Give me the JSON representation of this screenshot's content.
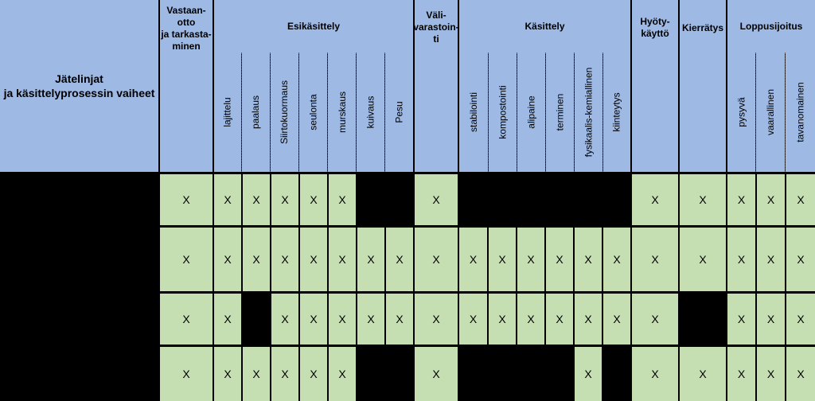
{
  "header": {
    "corner": "Jätelinjat\nja käsittelyprosessin vaiheet",
    "groups": {
      "vastaanotto": "Vastaan-\notto\nja tarkasta-\nminen",
      "esikasittely": "Esikäsittely",
      "valivarastointi": "Väli-\nvarastoin-\nti",
      "kasittely": "Käsittely",
      "hyotykaytto": "Hyöty-\nkäyttö",
      "kierratys": "Kierrätys",
      "loppusijoitus": "Loppusijoitus"
    },
    "sub": {
      "esikasittely": [
        "lajittelu",
        "paalaus",
        "Siirtokuormaus",
        "seulonta",
        "murskaus",
        "kuivaus",
        "Pesu"
      ],
      "kasittely": [
        "stabilointi",
        "kompostointi",
        "alipaine",
        "terminen",
        "fysikaalis-kemiallinen",
        "kiinteytys"
      ],
      "loppusijoitus": [
        "pysyvä",
        "vaarallinen",
        "tavanomainen"
      ]
    }
  },
  "mark": "X",
  "colors": {
    "header_bg": "#9eb9e3",
    "cell_bg": "#c5dfb3",
    "empty_bg": "#000000"
  },
  "rows": [
    {
      "lajittelu": "X",
      "paalaus": "X",
      "siirtokuormaus": "X",
      "seulonta": "X",
      "murskaus": "X",
      "hyotykaytto": "X",
      "kierratys": "X",
      "pysyva": "X",
      "vaarallinen": "X",
      "tavanomainen": "X"
    },
    {
      "lajittelu": "X",
      "paalaus": "X",
      "siirtokuormaus": "X",
      "seulonta": "X",
      "murskaus": "X",
      "kuivaus": "X",
      "pesu": "X",
      "stabilointi": "X",
      "kompostointi": "X",
      "alipaine": "X",
      "terminen": "X",
      "fysikaalis_kemiallinen": "X",
      "kiinteytys": "X",
      "hyotykaytto": "X",
      "kierratys": "X",
      "pysyva": "X",
      "vaarallinen": "X",
      "tavanomainen": "X"
    },
    {
      "lajittelu": "X",
      "seulonta": "X",
      "murskaus": "X",
      "kuivaus": "X",
      "pesu": "X",
      "stabilointi": "X",
      "kompostointi": "X",
      "alipaine": "X",
      "terminen": "X",
      "fysikaalis_kemiallinen": "X",
      "kiinteytys": "X",
      "hyotykaytto": "X",
      "pysyva": "X",
      "vaarallinen": "X",
      "tavanomainen": "X"
    },
    {
      "lajittelu": "X",
      "paalaus": "X",
      "siirtokuormaus": "X",
      "seulonta": "X",
      "murskaus": "X",
      "fysikaalis_kemiallinen": "X",
      "hyotykaytto": "X",
      "kierratys": "X",
      "pysyva": "X",
      "vaarallinen": "X",
      "tavanomainen": "X"
    }
  ]
}
